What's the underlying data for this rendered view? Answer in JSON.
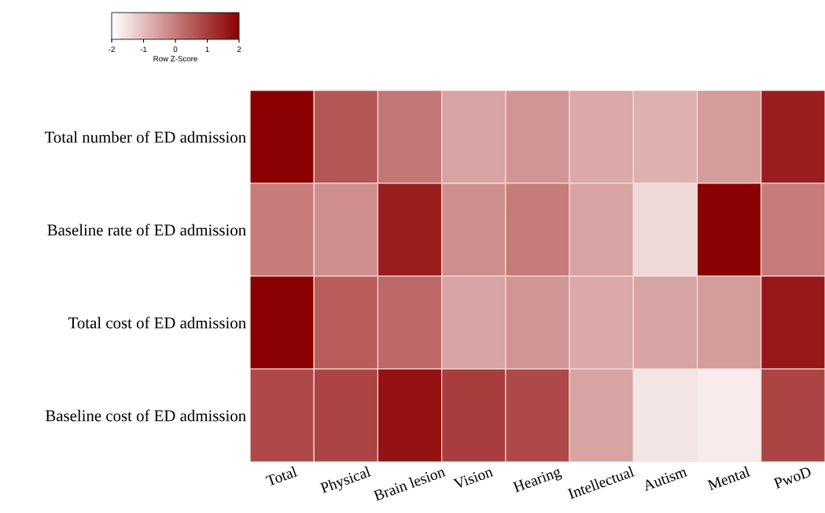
{
  "chart_data": {
    "type": "heatmap",
    "clabel": "Row Z-Score",
    "clim": [
      -2,
      2
    ],
    "cticks": [
      -2,
      -1,
      0,
      1,
      2
    ],
    "categories": [
      "Total",
      "Physical",
      "Brain lesion",
      "Vision",
      "Hearing",
      "Intellectual",
      "Autism",
      "Mental",
      "PwoD"
    ],
    "y_categories": [
      "Total number of ED admission",
      "Baseline rate of ED admission",
      "Total cost of ED admission",
      "Baseline cost of ED admission"
    ],
    "cells": [
      [
        2.0,
        0.6,
        0.1,
        -0.6,
        -0.4,
        -0.7,
        -0.8,
        -0.5,
        1.5
      ],
      [
        0.0,
        -0.3,
        1.5,
        -0.3,
        0.0,
        -0.6,
        -1.4,
        2.0,
        0.0
      ],
      [
        2.0,
        0.5,
        0.3,
        -0.6,
        -0.4,
        -0.7,
        -0.6,
        -0.5,
        1.6
      ],
      [
        0.8,
        0.9,
        1.7,
        1.0,
        0.8,
        -0.6,
        -1.6,
        -1.7,
        0.9
      ]
    ]
  }
}
